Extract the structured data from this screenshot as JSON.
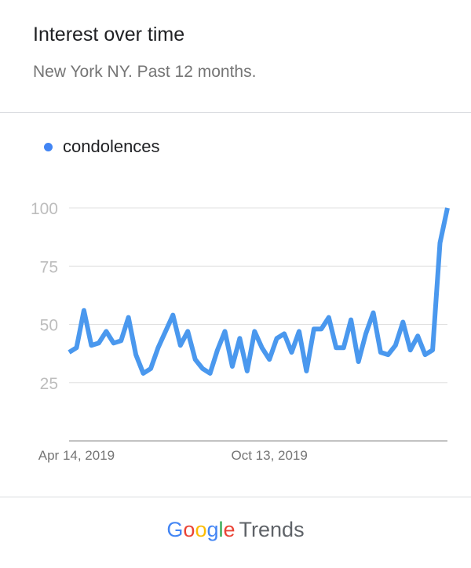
{
  "header": {
    "title": "Interest over time",
    "subtitle": "New York NY. Past 12 months."
  },
  "footer": {
    "logo_letters": [
      "G",
      "o",
      "o",
      "g",
      "l",
      "e"
    ],
    "logo_colors": [
      "#4285f4",
      "#ea4335",
      "#fbbc05",
      "#4285f4",
      "#34a853",
      "#ea4335"
    ],
    "trends_label": "Trends"
  },
  "chart_data": {
    "type": "line",
    "title": "",
    "xlabel": "",
    "ylabel": "",
    "ylim": [
      0,
      100
    ],
    "yticks": [
      25,
      50,
      75,
      100
    ],
    "xtick_labels": [
      {
        "label": "Apr 14, 2019",
        "index": 1
      },
      {
        "label": "Oct 13, 2019",
        "index": 27
      }
    ],
    "grid": true,
    "legend_position": "top-left",
    "line_color": "#4a98ee",
    "series": [
      {
        "name": "condolences",
        "values": [
          38,
          40,
          56,
          41,
          42,
          47,
          42,
          43,
          53,
          37,
          29,
          31,
          40,
          47,
          54,
          41,
          47,
          35,
          31,
          29,
          39,
          47,
          32,
          44,
          30,
          47,
          40,
          35,
          44,
          46,
          38,
          47,
          30,
          48,
          48,
          53,
          40,
          40,
          52,
          34,
          46,
          55,
          38,
          37,
          41,
          51,
          39,
          45,
          37,
          39,
          85,
          100
        ]
      }
    ]
  }
}
